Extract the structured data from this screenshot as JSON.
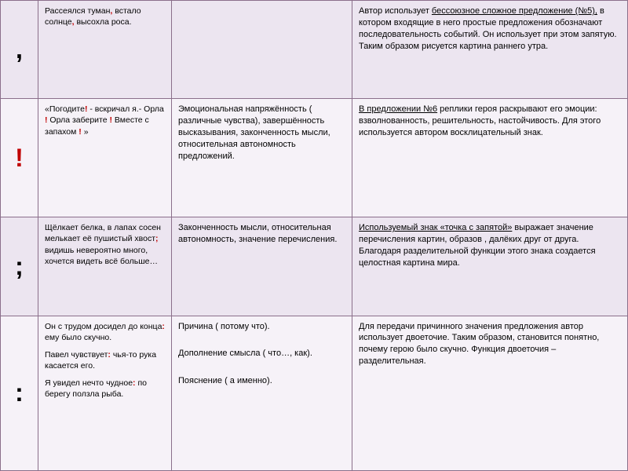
{
  "rows": [
    {
      "symbol": ",",
      "example": "Рассеялся туман<span class='punct'>,</span> встало солнце<span class='punct'>,</span> высохла роса.",
      "meaning": "",
      "author": "Автор использует <span class='underline'>бессоюзное сложное предложение (№5),</span> в котором входящие в него простые предложения обозначают последовательность событий. Он использует при этом запятую. Таким образом рисуется картина раннего утра."
    },
    {
      "symbol": "!",
      "example": "«Погодите<span class='punct'>!</span> - вскричал я.- Орла <span class='punct'>!</span> Орла заберите <span class='punct'>!</span> Вместе с запахом <span class='punct'>!</span> »",
      "meaning": "Эмоциональная напряжённость ( различные чувства), завершённость высказывания, законченность мысли, относительная автономность предложений.",
      "author": "<span class='underline'>В предложении №6</span> реплики героя раскрывают его эмоции: взволнованность, решительность, настойчивость. Для этого используется автором восклицательный знак."
    },
    {
      "symbol": ";",
      "example": "Щёлкает белка, в лапах сосен мелькает её пушистый хвост<span class='punct'>;</span> видишь невероятно много, хочется видеть всё больше…",
      "meaning": "Законченность мысли, относительная автономность, значение перечисления.",
      "author": "<span class='underline'>Используемый знак «точка с запятой»</span> выражает значение перечисления картин, образов , далёких друг от друга. Благодаря разделительной функции этого знака создается целостная картина мира."
    },
    {
      "symbol": ":",
      "example": "<div class='inner-block'>Он с трудом досидел до конца<span class='punct'>:</span> ему было скучно.</div><div class='inner-block'>Павел чувствует<span class='punct'>:</span> чья-то рука касается его.</div><div>Я увидел нечто чудное<span class='punct'>:</span> по берегу ползла рыба.</div>",
      "meaning": "<div class='inner-block'>Причина ( потому что).</div><div class='inner-block' style='margin-top:20px'>Дополнение смысла ( что…, как).</div><div style='margin-top:20px'>Пояснение ( а именно).</div>",
      "author": "Для передачи причинного значения предложения автор использует двоеточие. Таким образом, становится понятно, почему герою было скучно. Функция двоеточия – разделительная."
    }
  ],
  "colors": {
    "row_odd_bg": "#ece5f0",
    "row_even_bg": "#f6f2f8",
    "border": "#8b6f8b",
    "punct": "#c00000"
  }
}
